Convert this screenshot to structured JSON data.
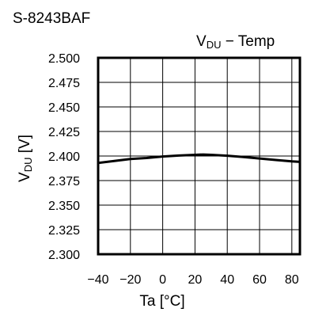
{
  "device_label": "S-8243BAF",
  "chart_data": {
    "type": "line",
    "title_main": "V",
    "title_sub": "DU",
    "title_rest": "− Temp",
    "ylabel_main": "V",
    "ylabel_sub": "DU",
    "ylabel_rest": " [V]",
    "xlabel": "Ta [°C]",
    "xlim": [
      -40,
      85
    ],
    "ylim": [
      2.3,
      2.5
    ],
    "xticks": [
      -40,
      -20,
      0,
      20,
      40,
      60,
      80
    ],
    "xtick_labels": [
      "−40",
      "−20",
      "0",
      "20",
      "40",
      "60",
      "80"
    ],
    "yticks": [
      2.3,
      2.325,
      2.35,
      2.375,
      2.4,
      2.425,
      2.45,
      2.475,
      2.5
    ],
    "ytick_labels": [
      "2.300",
      "2.325",
      "2.350",
      "2.375",
      "2.400",
      "2.425",
      "2.450",
      "2.475",
      "2.500"
    ],
    "grid": true,
    "series": [
      {
        "x": [
          -40,
          -30,
          -20,
          -10,
          0,
          10,
          20,
          25,
          30,
          40,
          50,
          60,
          70,
          80,
          85
        ],
        "y": [
          2.393,
          2.395,
          2.397,
          2.398,
          2.3995,
          2.4005,
          2.4012,
          2.4015,
          2.4012,
          2.4003,
          2.399,
          2.3975,
          2.396,
          2.3945,
          2.394
        ]
      }
    ]
  }
}
